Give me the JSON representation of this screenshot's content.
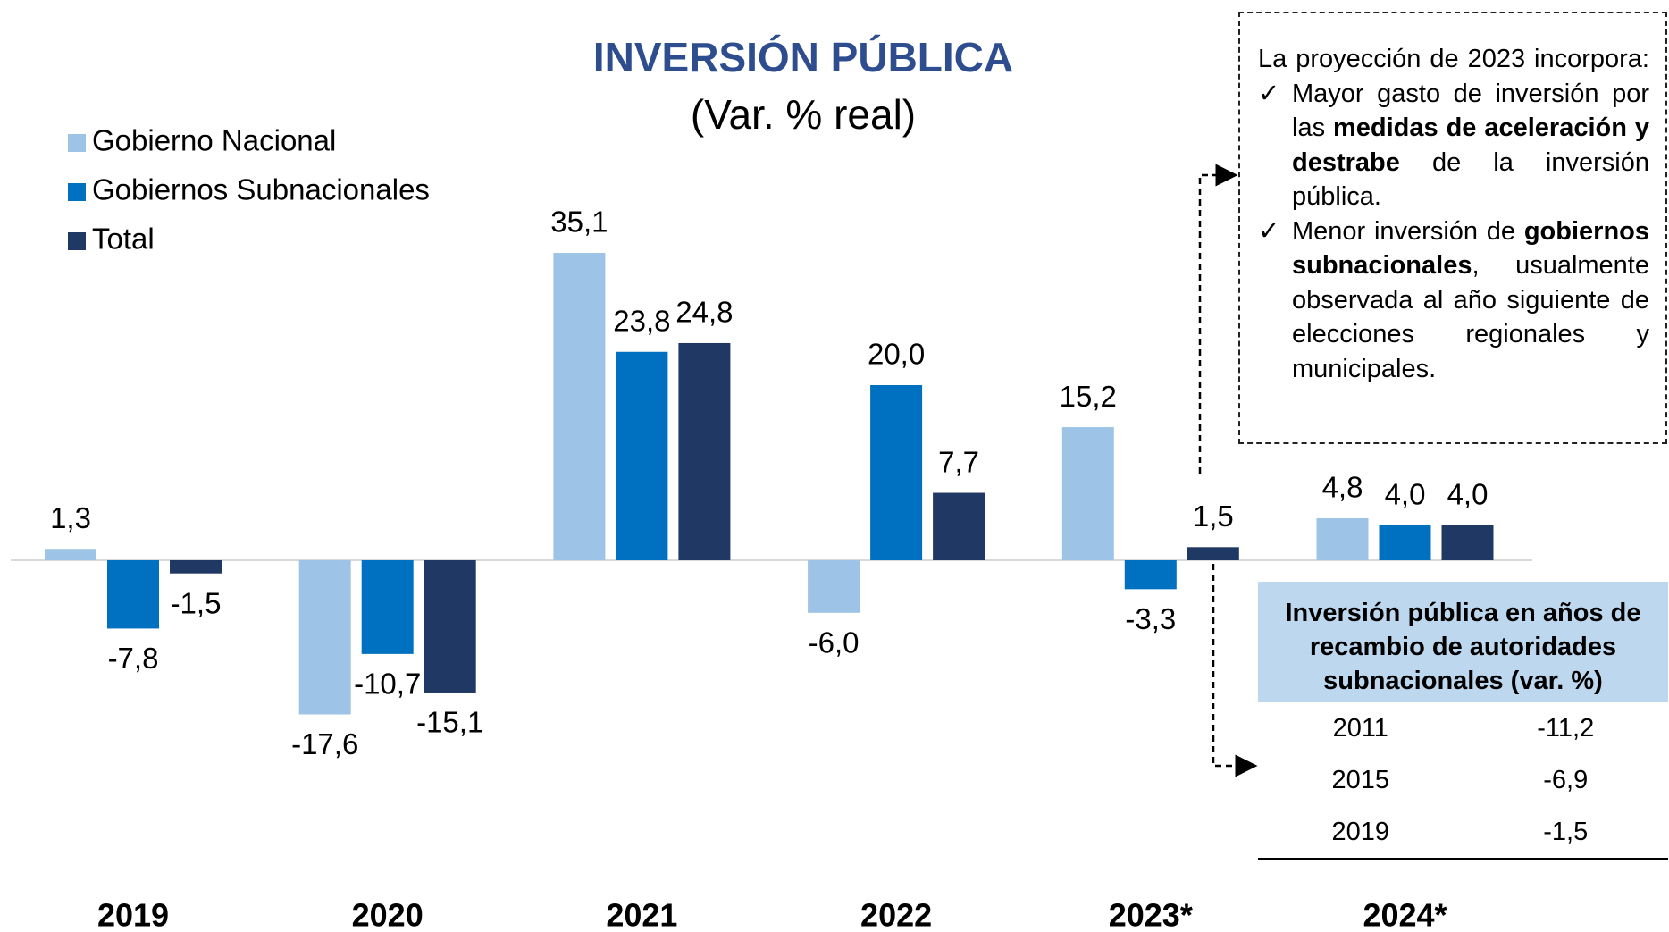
{
  "chart_data": {
    "type": "bar",
    "title": "INVERSIÓN PÚBLICA",
    "subtitle": "(Var. % real)",
    "categories": [
      "2019",
      "2020",
      "2021",
      "2022",
      "2023*",
      "2024*"
    ],
    "series": [
      {
        "name": "Gobierno Nacional",
        "color": "#9dc3e6",
        "values": [
          1.3,
          -17.6,
          35.1,
          -6.0,
          15.2,
          4.8
        ],
        "value_labels": [
          "1,3",
          "-17,6",
          "35,1",
          "-6,0",
          "15,2",
          "4,8"
        ]
      },
      {
        "name": "Gobiernos Subnacionales",
        "color": "#0070c0",
        "values": [
          -7.8,
          -10.7,
          23.8,
          20.0,
          -3.3,
          4.0
        ],
        "value_labels": [
          "-7,8",
          "-10,7",
          "23,8",
          "20,0",
          "-3,3",
          "4,0"
        ]
      },
      {
        "name": "Total",
        "color": "#203864",
        "values": [
          -1.5,
          -15.1,
          24.8,
          7.7,
          1.5,
          4.0
        ],
        "value_labels": [
          "-1,5",
          "-15,1",
          "24,8",
          "7,7",
          "1,5",
          "4,0"
        ]
      }
    ]
  },
  "annotation": {
    "intro": "La proyección de 2023 incorpora:",
    "items": [
      [
        "Mayor gasto de inversión por las ",
        "medidas de aceleración y destrabe",
        " de la inversión pública."
      ],
      [
        "Menor inversión de ",
        "gobiernos subnacionales",
        ", usualmente observada al año siguiente de elecciones regionales y municipales."
      ]
    ]
  },
  "table": {
    "title": "Inversión pública en años de recambio de autoridades subnacionales (var. %)",
    "rows": [
      [
        "2011",
        "-11,2"
      ],
      [
        "2015",
        "-6,9"
      ],
      [
        "2019",
        "-1,5"
      ]
    ]
  }
}
